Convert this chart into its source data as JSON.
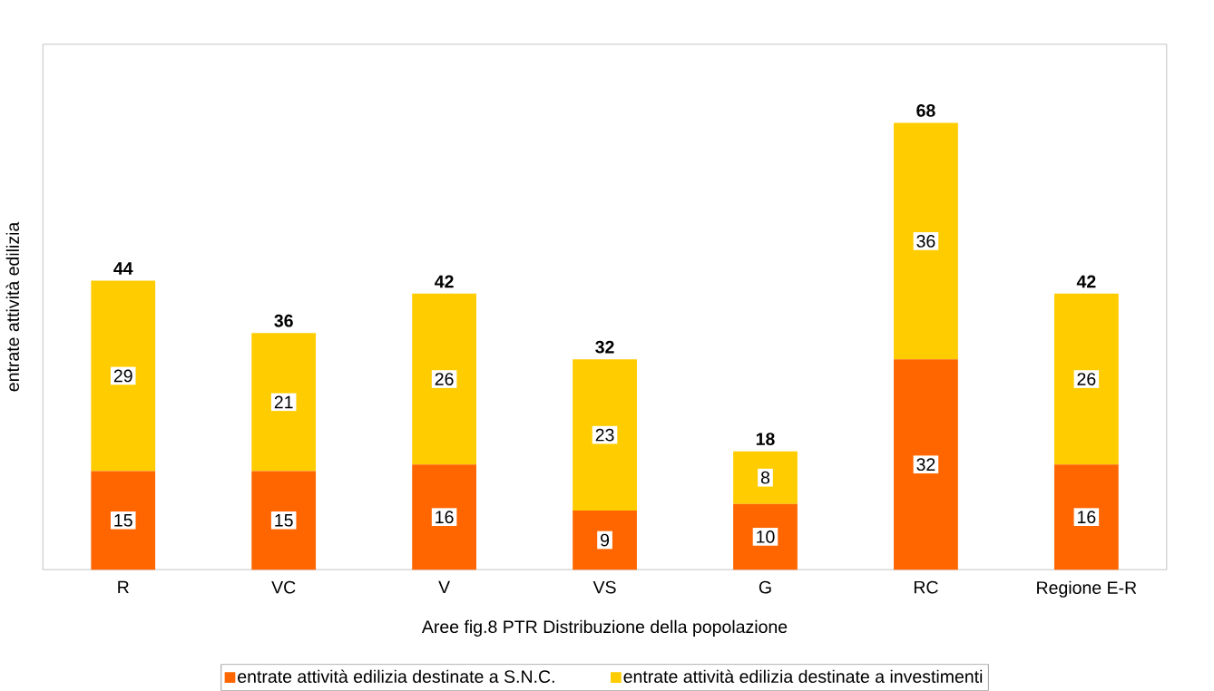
{
  "chart_data": {
    "type": "bar",
    "stacked": true,
    "xlabel": "Aree fig.8 PTR Distribuzione della popolazione",
    "ylabel": "entrate attività edilizia",
    "categories": [
      "R",
      "VC",
      "V",
      "VS",
      "G",
      "RC",
      "Regione E-R"
    ],
    "series": [
      {
        "name": "entrate attività edilizia destinate a S.N.C.",
        "color": "#ff6600",
        "values": [
          15,
          15,
          16,
          9,
          10,
          32,
          16
        ]
      },
      {
        "name": "entrate attività edilizia destinate a investimenti",
        "color": "#ffcc00",
        "values": [
          29,
          21,
          26,
          23,
          8,
          36,
          26
        ]
      }
    ],
    "totals": [
      "44",
      "36",
      "42",
      "32",
      "18",
      "68",
      "42"
    ],
    "data_labels": true,
    "tick_labels": "x",
    "legend": "bottom",
    "grid": false
  }
}
